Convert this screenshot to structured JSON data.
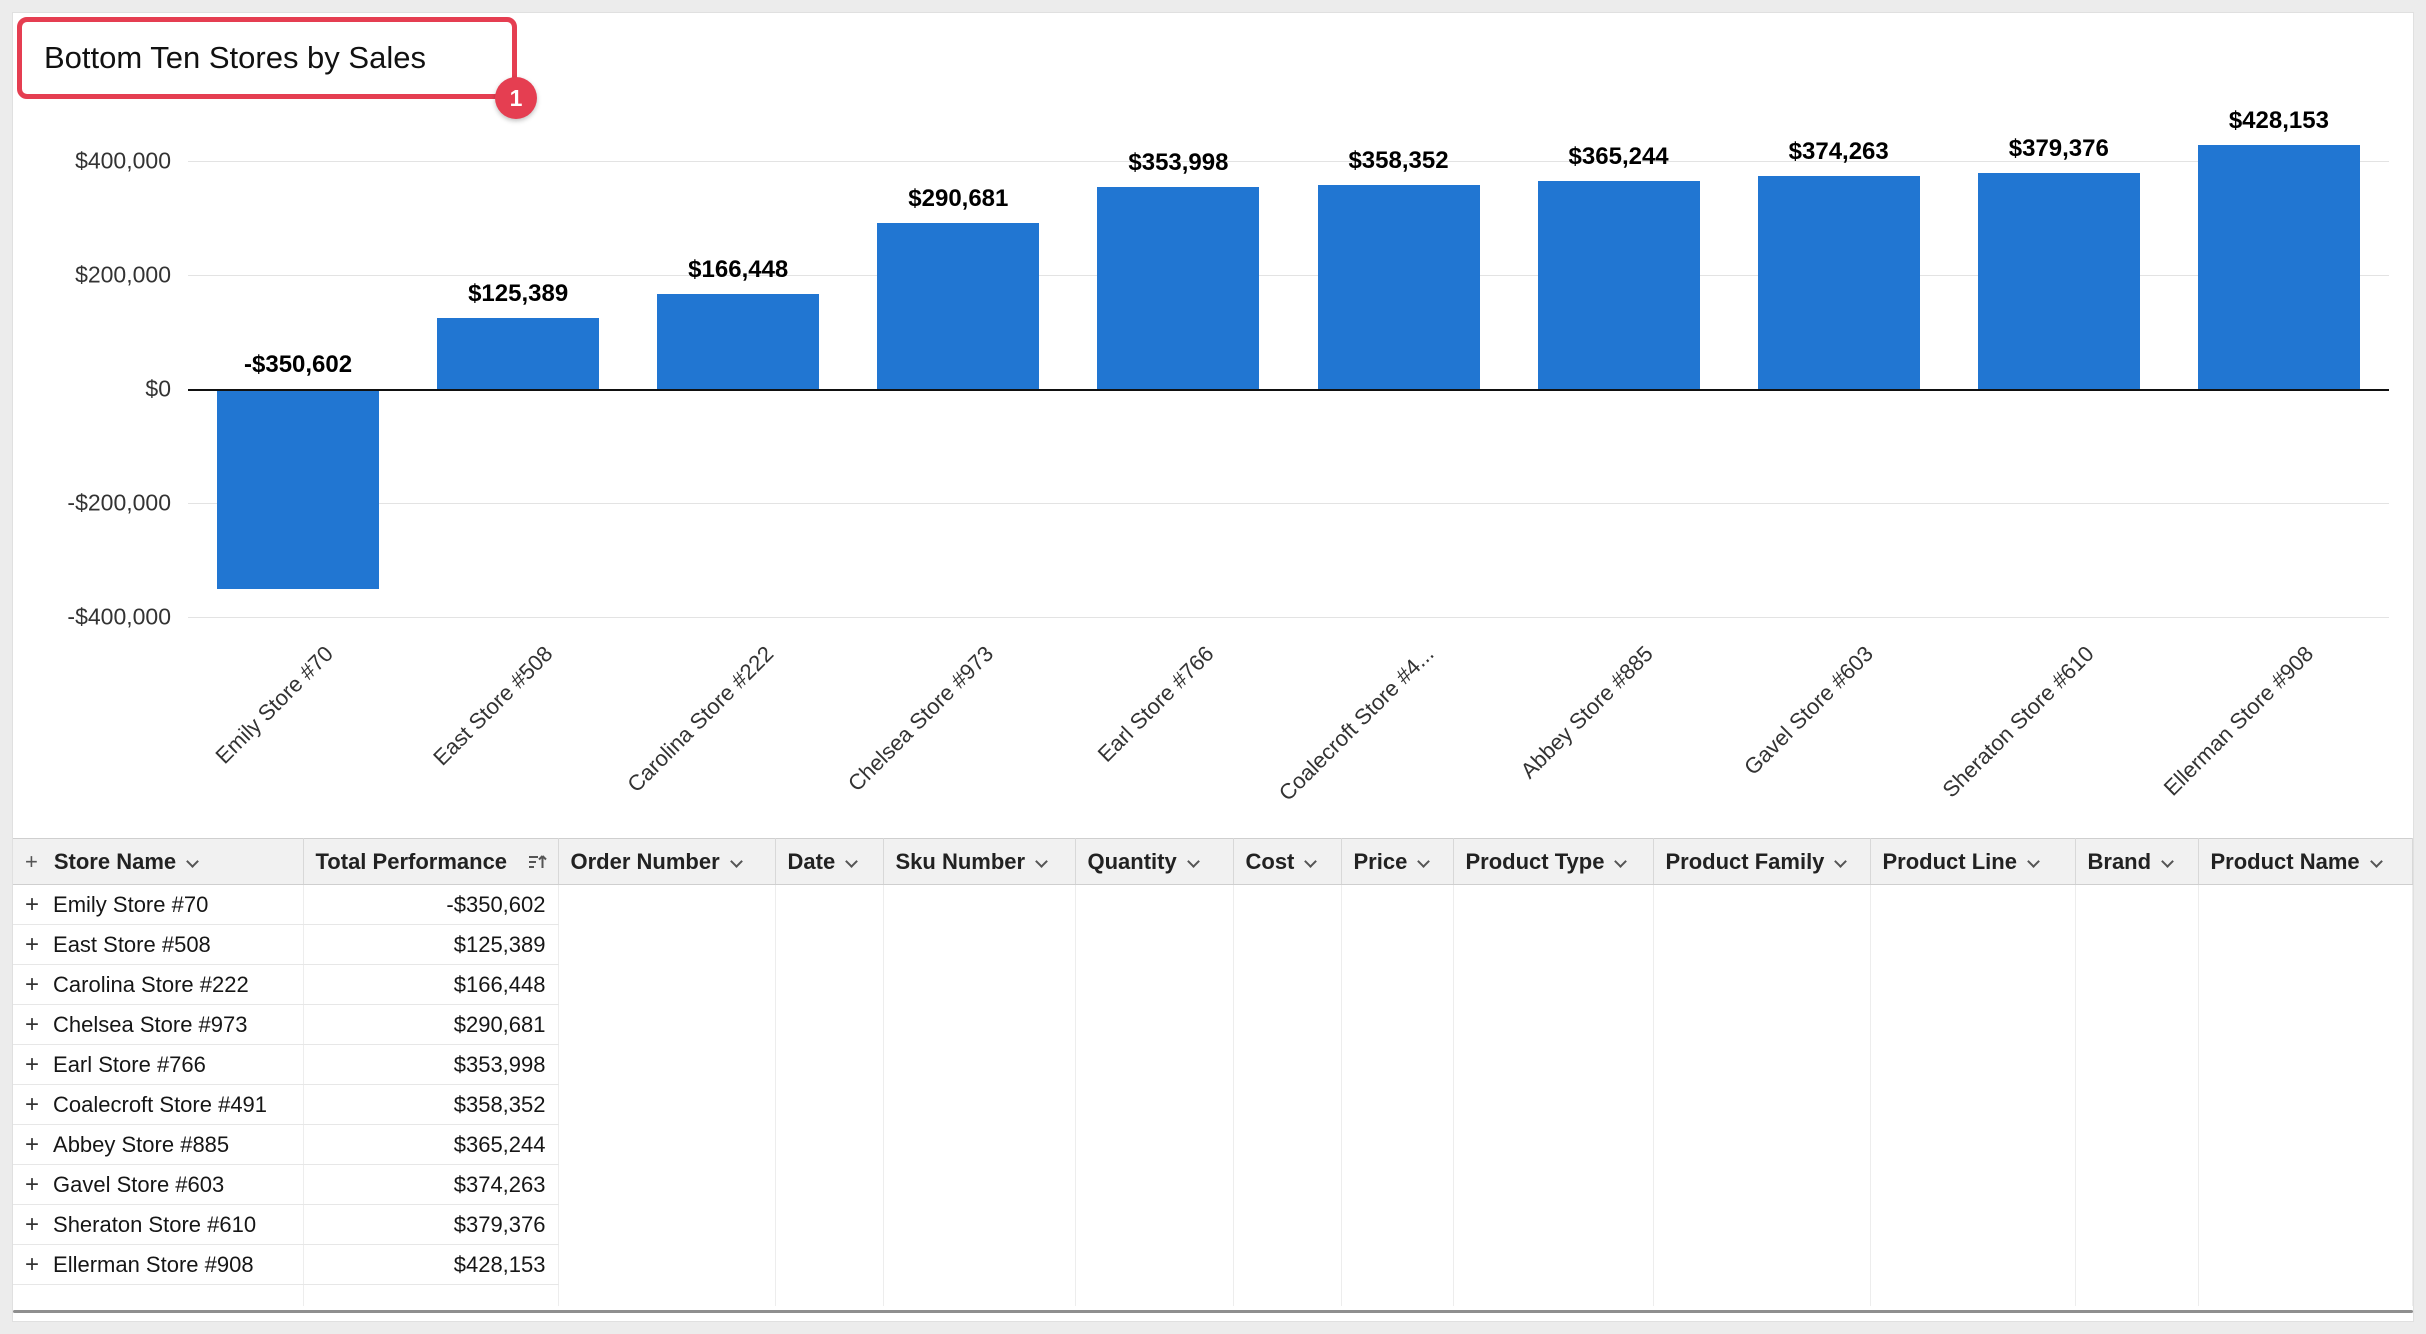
{
  "title": {
    "text": "Bottom Ten Stores by Sales"
  },
  "annotation": {
    "step_badge": "1",
    "highlight_color": "#e53e51"
  },
  "colors": {
    "bar_blue": "#2176d2",
    "accent_red": "#e53e51",
    "page_bg": "#ececec",
    "panel_bg": "#ffffff"
  },
  "chart_data": {
    "type": "bar",
    "title": "Bottom Ten Stores by Sales",
    "categories": [
      "Emily Store #70",
      "East Store #508",
      "Carolina Store #222",
      "Chelsea Store #973",
      "Earl Store #766",
      "Coalecroft Store #4...",
      "Abbey Store #885",
      "Gavel Store #603",
      "Sheraton Store #610",
      "Ellerman Store #908"
    ],
    "values": [
      -350602,
      125389,
      166448,
      290681,
      353998,
      358352,
      365244,
      374263,
      379376,
      428153
    ],
    "value_labels": [
      "-$350,602",
      "$125,389",
      "$166,448",
      "$290,681",
      "$353,998",
      "$358,352",
      "$365,244",
      "$374,263",
      "$379,376",
      "$428,153"
    ],
    "xlabel": "",
    "ylabel": "",
    "ylim": [
      -400000,
      400000
    ],
    "ytick_values": [
      400000,
      200000,
      0,
      -200000,
      -400000
    ],
    "ytick_labels": [
      "$400,000",
      "$200,000",
      "$0",
      "-$200,000",
      "-$400,000"
    ],
    "grid": true,
    "legend": "none",
    "bar_color": "#2176d2"
  },
  "table": {
    "columns": [
      {
        "label": "Store Name",
        "icon": "chevron-down"
      },
      {
        "label": "Total Performance",
        "icon": "sort-ascending"
      },
      {
        "label": "Order Number",
        "icon": "chevron-down"
      },
      {
        "label": "Date",
        "icon": "chevron-down"
      },
      {
        "label": "Sku Number",
        "icon": "chevron-down"
      },
      {
        "label": "Quantity",
        "icon": "chevron-down"
      },
      {
        "label": "Cost",
        "icon": "chevron-down"
      },
      {
        "label": "Price",
        "icon": "chevron-down"
      },
      {
        "label": "Product Type",
        "icon": "chevron-down"
      },
      {
        "label": "Product Family",
        "icon": "chevron-down"
      },
      {
        "label": "Product Line",
        "icon": "chevron-down"
      },
      {
        "label": "Brand",
        "icon": "chevron-down"
      },
      {
        "label": "Product Name",
        "icon": "chevron-down"
      }
    ],
    "rows": [
      {
        "store": "Emily Store #70",
        "performance": "-$350,602"
      },
      {
        "store": "East Store #508",
        "performance": "$125,389"
      },
      {
        "store": "Carolina Store #222",
        "performance": "$166,448"
      },
      {
        "store": "Chelsea Store #973",
        "performance": "$290,681"
      },
      {
        "store": "Earl Store #766",
        "performance": "$353,998"
      },
      {
        "store": "Coalecroft Store #491",
        "performance": "$358,352"
      },
      {
        "store": "Abbey Store #885",
        "performance": "$365,244"
      },
      {
        "store": "Gavel Store #603",
        "performance": "$374,263"
      },
      {
        "store": "Sheraton Store #610",
        "performance": "$379,376"
      },
      {
        "store": "Ellerman Store #908",
        "performance": "$428,153"
      }
    ]
  }
}
